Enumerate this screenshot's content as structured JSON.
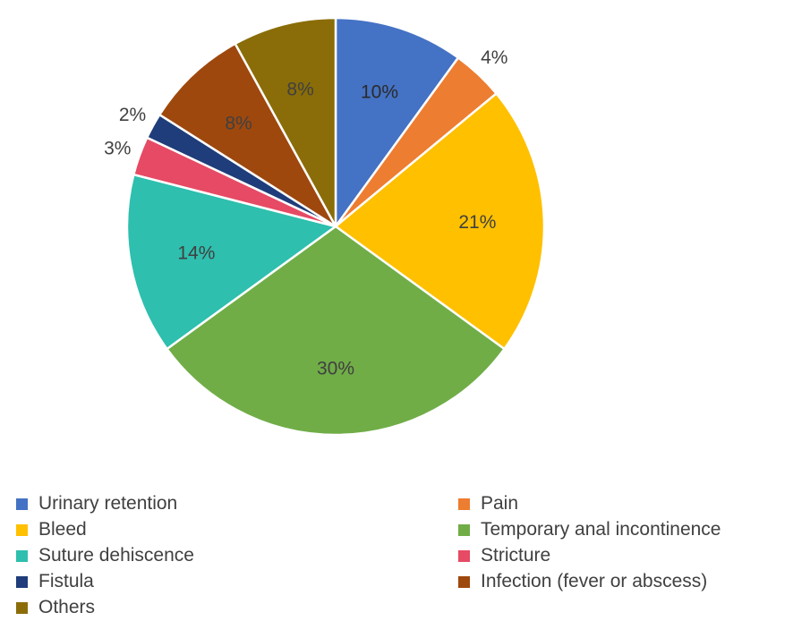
{
  "chart_data": {
    "type": "pie",
    "slices": [
      {
        "label": "Urinary retention",
        "value": 10,
        "display": "10%",
        "color": "#4472C4"
      },
      {
        "label": "Pain",
        "value": 4,
        "display": "4%",
        "color": "#ED7D31"
      },
      {
        "label": "Bleed",
        "value": 21,
        "display": "21%",
        "color": "#FFC000"
      },
      {
        "label": "Temporary anal incontinence",
        "value": 30,
        "display": "30%",
        "color": "#70AD47"
      },
      {
        "label": "Suture dehiscence",
        "value": 14,
        "display": "14%",
        "color": "#2EBFAE"
      },
      {
        "label": "Stricture",
        "value": 3,
        "display": "3%",
        "color": "#E64A64"
      },
      {
        "label": "Fistula",
        "value": 2,
        "display": "2%",
        "color": "#1F3D7A"
      },
      {
        "label": "Infection (fever or abscess)",
        "value": 8,
        "display": "8%",
        "color": "#9E480E"
      },
      {
        "label": "Others",
        "value": 8,
        "display": "8%",
        "color": "#8A6D08"
      }
    ],
    "legend_position": "bottom"
  }
}
